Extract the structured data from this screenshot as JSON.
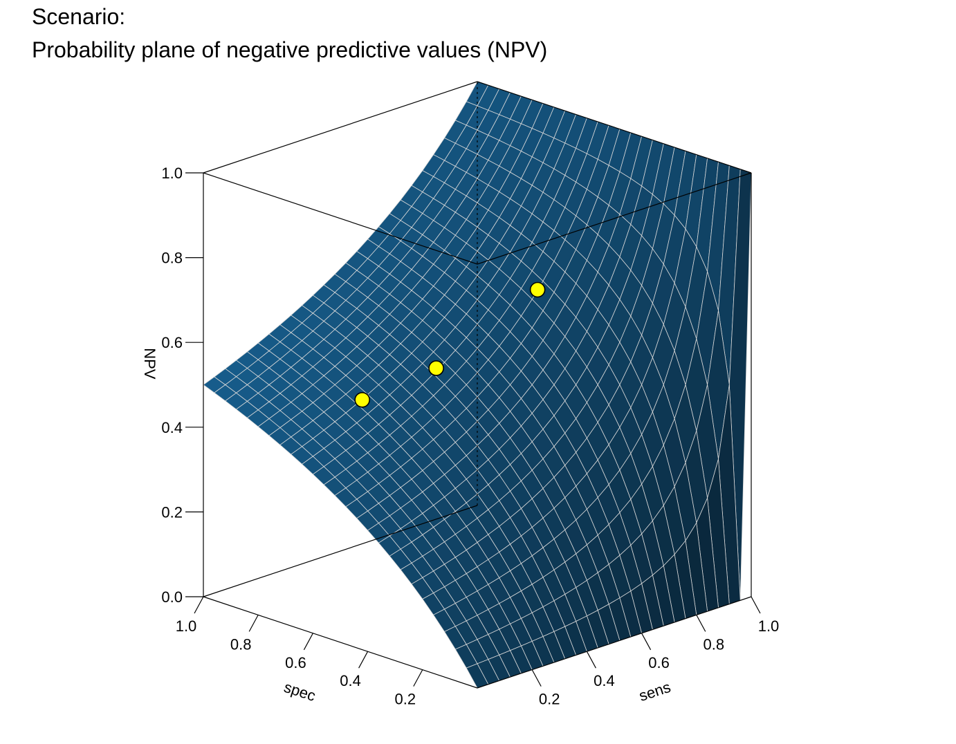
{
  "title_line1": "Scenario:",
  "title_line2": "Probability plane of negative predictive values (NPV)",
  "chart_data": {
    "type": "surface3d",
    "title": "Scenario: Probability plane of negative predictive values (NPV)",
    "xlabel": "spec",
    "ylabel": "sens",
    "zlabel": "NPV",
    "xlim": [
      0,
      1
    ],
    "ylim": [
      0,
      1
    ],
    "zlim": [
      0,
      1
    ],
    "x_ticks": [
      "1.0",
      "0.8",
      "0.6",
      "0.4",
      "0.2"
    ],
    "y_ticks": [
      "0.2",
      "0.4",
      "0.6",
      "0.8",
      "1.0"
    ],
    "z_ticks": [
      "0.0",
      "0.2",
      "0.4",
      "0.6",
      "0.8",
      "1.0"
    ],
    "prevalence": 0.5,
    "surface_color": "#1a6aa0",
    "grid_line_color": "#d9d9d9",
    "point_color": "#ffff00",
    "points": [
      {
        "spec": 0.79,
        "sens": 0.37,
        "npv": 0.43
      },
      {
        "spec": 0.55,
        "sens": 0.4,
        "npv": 0.55
      },
      {
        "spec": 0.4,
        "sens": 0.62,
        "npv": 0.72
      }
    ]
  }
}
